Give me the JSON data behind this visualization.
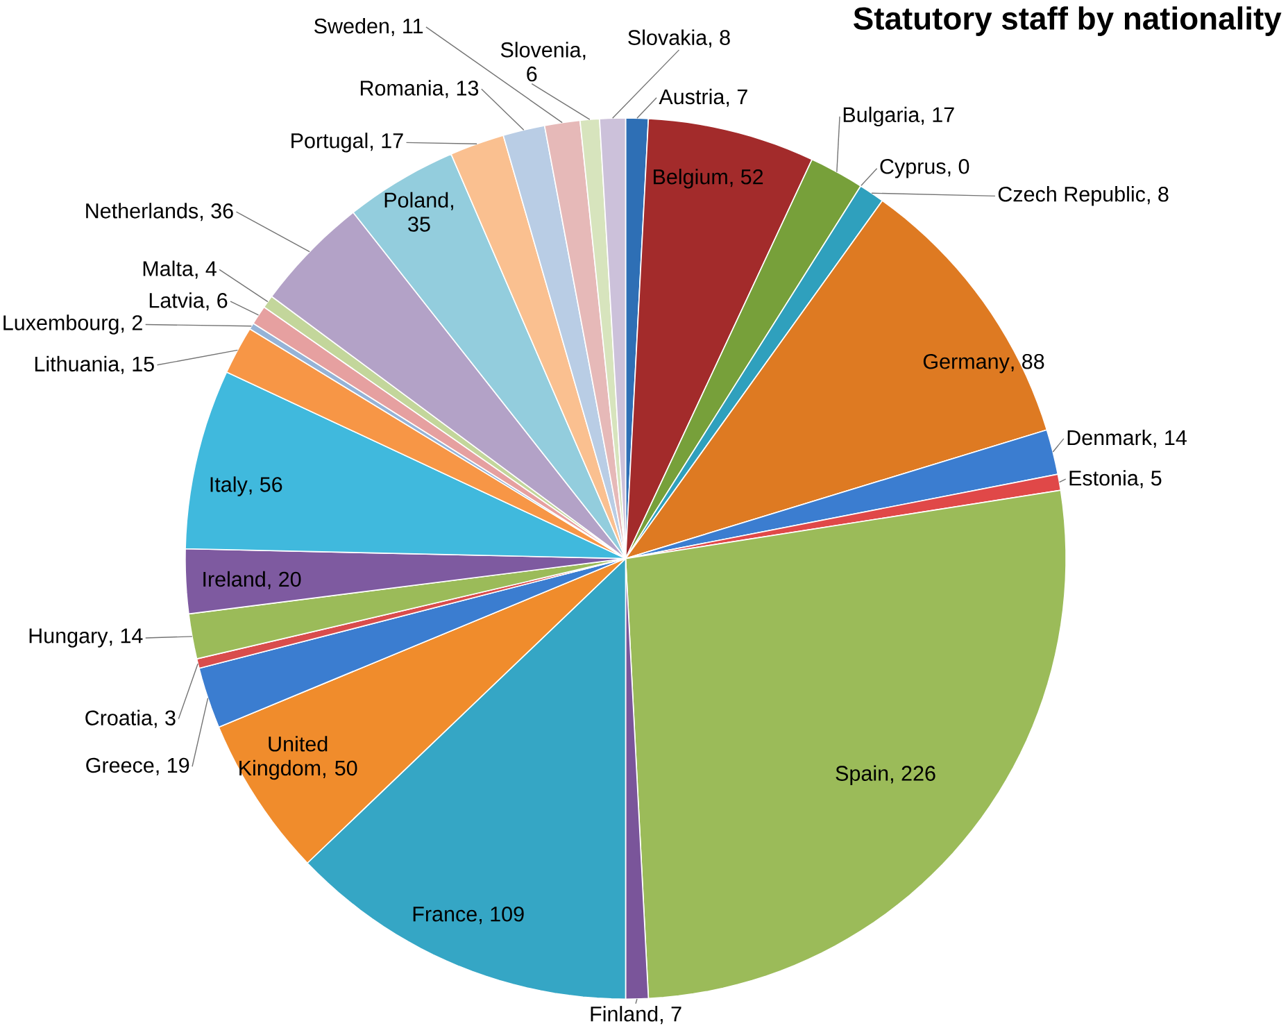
{
  "chart_data": {
    "type": "pie",
    "title": "Statutory staff by nationality",
    "categories": [
      "Austria",
      "Belgium",
      "Bulgaria",
      "Cyprus",
      "Czech Republic",
      "Germany",
      "Denmark",
      "Estonia",
      "Spain",
      "Finland",
      "France",
      "United Kingdom",
      "Greece",
      "Croatia",
      "Hungary",
      "Ireland",
      "Italy",
      "Lithuania",
      "Luxembourg",
      "Latvia",
      "Malta",
      "Netherlands",
      "Poland",
      "Portugal",
      "Romania",
      "Sweden",
      "Slovenia",
      "Slovakia"
    ],
    "values": [
      7,
      52,
      17,
      0,
      8,
      88,
      14,
      5,
      226,
      7,
      109,
      50,
      19,
      3,
      14,
      20,
      56,
      15,
      2,
      6,
      4,
      36,
      35,
      17,
      13,
      11,
      6,
      8
    ],
    "colors": [
      "#2e6fb5",
      "#a32b2b",
      "#77a03a",
      "#6f4f94",
      "#2fa0bd",
      "#de7a22",
      "#3b7dd0",
      "#e04848",
      "#9bbb59",
      "#7a559a",
      "#35a6c5",
      "#f08c2c",
      "#3b7dd0",
      "#d94c4c",
      "#9bbb59",
      "#7e5aa0",
      "#40b9dd",
      "#f79646",
      "#95b3d7",
      "#e6a0a0",
      "#c3d69b",
      "#b3a2c7",
      "#93cddd",
      "#fac090",
      "#b9cde5",
      "#e6b9b8",
      "#d7e4bd",
      "#ccc1da"
    ],
    "data_labels": true,
    "value_labels": [
      ", 7",
      ", 52",
      ", 17",
      ", 0",
      ", 8",
      ", 88",
      ", 14",
      ", 5",
      ", 226",
      ", 7",
      ", 109",
      ", 50",
      ", 19",
      ", 3",
      ", 14",
      ", 20",
      ", 56",
      ", 15",
      ", 2",
      ", 6",
      ", 4",
      ", 36",
      ", 35",
      ", 17",
      ", 13",
      ", 11",
      ", 6",
      ", 8"
    ]
  }
}
